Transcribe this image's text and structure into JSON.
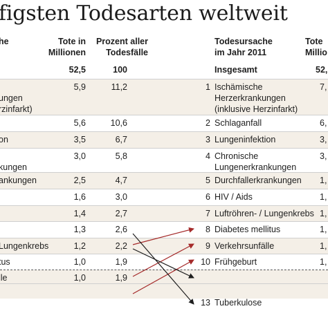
{
  "title": "figsten Todesarten weltweit",
  "headers": {
    "left_cause": "he",
    "tote": [
      "Tote in",
      "Millionen"
    ],
    "prozent": [
      "Prozent aller",
      "Todesfälle"
    ],
    "right_cause": [
      "Todesursache",
      "im Jahr 2011"
    ],
    "right_tote": [
      "Tote",
      "Millio"
    ]
  },
  "total": {
    "tote": "52,5",
    "prozent": "100",
    "label": "Insgesamt",
    "right_tote": "52,"
  },
  "left_rows": [
    {
      "lines": [
        "",
        "ungen",
        "rzinfarkt)"
      ],
      "tote": "5,9",
      "prozent": "11,2"
    },
    {
      "lines": [
        ""
      ],
      "tote": "5,6",
      "prozent": "10,6"
    },
    {
      "lines": [
        "on"
      ],
      "tote": "3,5",
      "prozent": "6,7"
    },
    {
      "lines": [
        "",
        "kungen"
      ],
      "tote": "3,0",
      "prozent": "5,8"
    },
    {
      "lines": [
        "ankungen"
      ],
      "tote": "2,5",
      "prozent": "4,7"
    },
    {
      "lines": [
        ""
      ],
      "tote": "1,6",
      "prozent": "3,0"
    },
    {
      "lines": [
        ""
      ],
      "tote": "1,4",
      "prozent": "2,7"
    },
    {
      "lines": [
        ""
      ],
      "tote": "1,3",
      "prozent": "2,6"
    },
    {
      "lines": [
        "Lungenkrebs"
      ],
      "tote": "1,2",
      "prozent": "2,2"
    },
    {
      "lines": [
        "tus"
      ],
      "tote": "1,0",
      "prozent": "1,9"
    },
    {
      "lines": [
        "lle"
      ],
      "tote": "1,0",
      "prozent": "1,9"
    }
  ],
  "right_rows": [
    {
      "rank": "1",
      "lines": [
        "Ischämische",
        "Herzerkrankungen",
        "(inklusive Herzinfarkt)"
      ],
      "tote": "7,"
    },
    {
      "rank": "2",
      "lines": [
        "Schlaganfall"
      ],
      "tote": "6,"
    },
    {
      "rank": "3",
      "lines": [
        "Lungeninfektion"
      ],
      "tote": "3,"
    },
    {
      "rank": "4",
      "lines": [
        "Chronische",
        "Lungenerkrankungen"
      ],
      "tote": "3,"
    },
    {
      "rank": "5",
      "lines": [
        "Durchfallerkrankungen"
      ],
      "tote": "1,"
    },
    {
      "rank": "6",
      "lines": [
        "HIV / Aids"
      ],
      "tote": "1,"
    },
    {
      "rank": "7",
      "lines": [
        "Luftröhren- / Lungenkrebs"
      ],
      "tote": "1,"
    },
    {
      "rank": "8",
      "lines": [
        "Diabetes mellitus"
      ],
      "tote": "1,"
    },
    {
      "rank": "9",
      "lines": [
        "Verkehrsunfälle"
      ],
      "tote": "1,"
    },
    {
      "rank": "10",
      "lines": [
        "Frühgeburt"
      ],
      "tote": "1,"
    },
    {
      "rank": "13",
      "lines": [
        "Tuberkulose"
      ],
      "tote": ""
    }
  ],
  "colors": {
    "band": "#f4efe7",
    "rise_arrow": "#a52a2a",
    "fall_arrow": "#1e1e1e",
    "text": "#1e1e1e"
  }
}
